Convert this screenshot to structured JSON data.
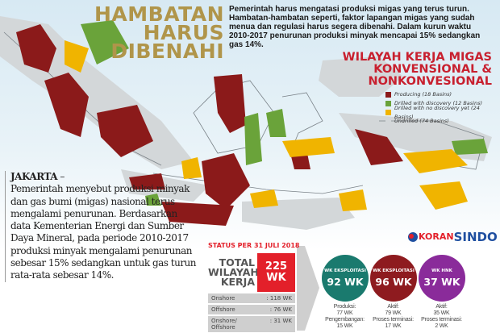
{
  "header": {
    "title_line1": "HAMBATAN",
    "title_line2": "HARUS DIBENAHI",
    "lead": "Pemerintah harus mengatasi produksi migas yang terus turun. Hambatan-hambatan seperti, faktor lapangan migas yang sudah menua dan regulasi harus segera dibenahi. Dalam kurun waktu 2010-2017 penurunan produksi minyak mencapai 15% sedangkan gas 14%."
  },
  "map": {
    "title_line1": "WILAYAH KERJA MIGAS",
    "title_line2": "KONVENSIONAL &",
    "title_line3": "NONKONVESIONAL",
    "legend": [
      {
        "label": "Producing (18 Basins)",
        "color": "#8b1a1a"
      },
      {
        "label": "Drilled with discovery (12 Basins)",
        "color": "#6aa33a"
      },
      {
        "label": "Drilled with no discovery yet (24 Basins)",
        "color": "#f0b400"
      },
      {
        "label": "Undrilled (74 Basins)",
        "color": "#d3d7d9"
      }
    ]
  },
  "story": {
    "dateline": "JAKARTA",
    "dash": " –",
    "body": "Pemerintah menyebut produksi minyak dan gas bumi (migas) nasional terus mengalami penurunan. Berdasarkan data Kementerian Energi dan Sumber Daya Mineral, pada periode 2010-2017 produksi minyak mengalami penurunan sebesar 15% sedangkan untuk gas turun rata-rata sebesar 14%."
  },
  "status": {
    "heading": "STATUS PER 31 JULI 2018",
    "total_label": "TOTAL WILAYAH KERJA",
    "total_value": "225 WK",
    "rows": [
      {
        "label": "Onshore",
        "value": ": 118 WK"
      },
      {
        "label": "Offshore",
        "value": ": 76 WK"
      },
      {
        "label": "Onshore/ Offshore",
        "value": ": 31 WK"
      }
    ]
  },
  "categories": [
    {
      "title": "WK EKSPLOITASI",
      "value": "92 WK",
      "color": "#1a7a6e",
      "lines": [
        "Produksi:",
        "77 WK",
        "Pengembangan:",
        "15 WK"
      ]
    },
    {
      "title": "WK EKSPLOITASI",
      "value": "96 WK",
      "color": "#8e1b1f",
      "lines": [
        "Aktif:",
        "79 WK",
        "Proses terminasi:",
        "17 WK"
      ]
    },
    {
      "title": "WK HNK",
      "value": "37 WK",
      "color": "#8a2b9a",
      "lines": [
        "Aktif:",
        "35 WK",
        "Proses terminasi:",
        "2 WK"
      ]
    }
  ],
  "brand": {
    "part1": "KORAN",
    "part2": "SINDO"
  }
}
